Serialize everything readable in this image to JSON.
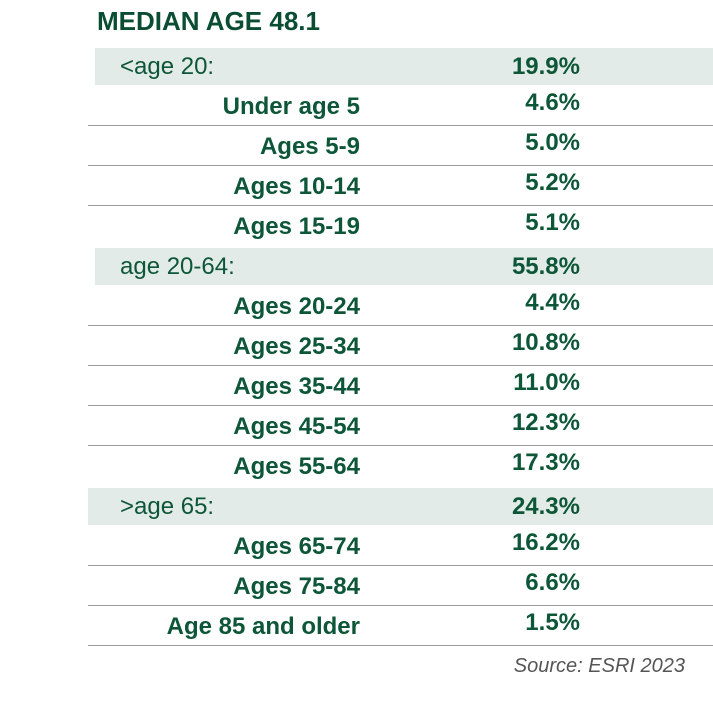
{
  "title": "MEDIAN AGE 48.1",
  "groups": [
    {
      "label": "<age 20:",
      "value": "19.9%",
      "rows": [
        {
          "label": "Under age 5",
          "value": "4.6%"
        },
        {
          "label": "Ages 5-9",
          "value": "5.0%"
        },
        {
          "label": "Ages 10-14",
          "value": "5.2%"
        },
        {
          "label": "Ages 15-19",
          "value": "5.1%"
        }
      ]
    },
    {
      "label": "age 20-64:",
      "value": "55.8%",
      "rows": [
        {
          "label": "Ages 20-24",
          "value": "4.4%"
        },
        {
          "label": "Ages 25-34",
          "value": "10.8%"
        },
        {
          "label": "Ages 35-44",
          "value": "11.0%"
        },
        {
          "label": "Ages 45-54",
          "value": "12.3%"
        },
        {
          "label": "Ages 55-64",
          "value": "17.3%"
        }
      ]
    },
    {
      "label": ">age 65:",
      "value": "24.3%",
      "rows": [
        {
          "label": "Ages 65-74",
          "value": "16.2%"
        },
        {
          "label": "Ages 75-84",
          "value": "6.6%"
        },
        {
          "label": "Age 85 and older",
          "value": "1.5%"
        }
      ]
    }
  ],
  "source": "Source: ESRI 2023"
}
